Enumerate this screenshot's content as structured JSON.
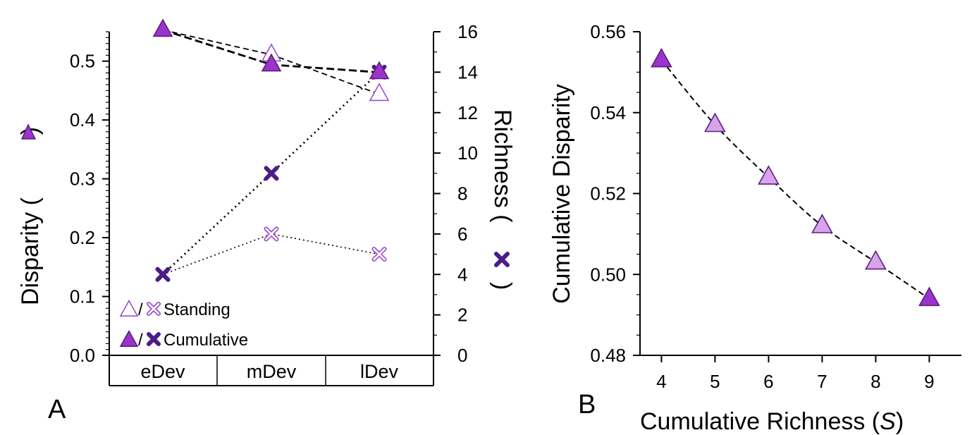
{
  "colors": {
    "cumulative_fill": "#9b33cc",
    "cumulative_stroke": "#5b1f7e",
    "standing_fill": "#ffffff",
    "standing_stroke": "#9b4fcf",
    "light_fill": "#d7a4ec",
    "richness_x": "#4b1d86",
    "line": "#000000"
  },
  "chart_data": [
    {
      "panel_label": "A",
      "type": "scatter",
      "categories": [
        "eDev",
        "mDev",
        "lDev"
      ],
      "ylabel": "Disparity (",
      "ylabel_suffix": ")",
      "y2label": "Richness (",
      "y2label_suffix": ")",
      "ylim": [
        0.0,
        0.55
      ],
      "yticks": [
        "0.0",
        "0.1",
        "0.2",
        "0.3",
        "0.4",
        "0.5"
      ],
      "y2lim": [
        0,
        16
      ],
      "y2ticks": [
        "0",
        "2",
        "4",
        "6",
        "8",
        "10",
        "12",
        "14",
        "16"
      ],
      "legend_position": "bottom-left",
      "legend": [
        {
          "symbols": "standing",
          "label": "Standing"
        },
        {
          "symbols": "cumulative",
          "label": "Cumulative"
        }
      ],
      "series": [
        {
          "name": "Standing",
          "measure": "disparity",
          "axis": "left",
          "marker": "open-triangle",
          "values": [
            0.553,
            0.511,
            0.444
          ]
        },
        {
          "name": "Cumulative",
          "measure": "disparity",
          "axis": "left",
          "marker": "filled-triangle",
          "values": [
            0.553,
            0.494,
            0.481
          ]
        },
        {
          "name": "Standing",
          "measure": "richness",
          "axis": "right",
          "marker": "open-x",
          "values": [
            4,
            6,
            5
          ]
        },
        {
          "name": "Cumulative",
          "measure": "richness",
          "axis": "right",
          "marker": "filled-x",
          "values": [
            4,
            9,
            14
          ]
        }
      ]
    },
    {
      "panel_label": "B",
      "type": "scatter",
      "xlabel": "Cumulative Richness (",
      "xlabel_italic": "S",
      "xlabel_suffix": ")",
      "ylabel": "Cumulative Disparity",
      "xlim": [
        3.6,
        9.6
      ],
      "xticks": [
        "4",
        "5",
        "6",
        "7",
        "8",
        "9"
      ],
      "ylim": [
        0.48,
        0.56
      ],
      "yticks": [
        "0.48",
        "0.50",
        "0.52",
        "0.54",
        "0.56"
      ],
      "x": [
        4,
        5,
        6,
        7,
        8,
        9
      ],
      "values": [
        0.553,
        0.537,
        0.524,
        0.512,
        0.503,
        0.494
      ]
    }
  ]
}
